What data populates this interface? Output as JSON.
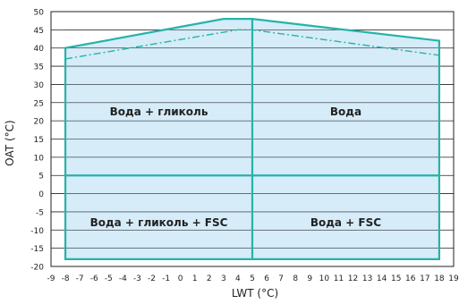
{
  "colors": {
    "envelope_fill": "#c8e6f5",
    "envelope_line": "#26b3a8",
    "grid": "#222222",
    "frame": "#222222"
  },
  "chart_data": {
    "type": "area",
    "xlabel": "LWT (°C)",
    "ylabel": "OAT (°C)",
    "xlim": [
      -9,
      19
    ],
    "ylim": [
      -20,
      50
    ],
    "x_ticks": [
      -9,
      -8,
      -7,
      -6,
      -5,
      -4,
      -3,
      -2,
      -1,
      0,
      1,
      2,
      3,
      4,
      5,
      6,
      7,
      8,
      9,
      10,
      11,
      12,
      13,
      14,
      15,
      16,
      17,
      18,
      19
    ],
    "y_ticks": [
      -20,
      -15,
      -10,
      -5,
      0,
      5,
      10,
      15,
      20,
      25,
      30,
      35,
      40,
      45,
      50
    ],
    "grid": "horizontal",
    "envelope": {
      "x": [
        -8,
        -8,
        3,
        5,
        18,
        18
      ],
      "y": [
        -18,
        40,
        48,
        48,
        42,
        -18
      ]
    },
    "dash_dot_limit": {
      "x": [
        -8,
        4,
        5,
        18
      ],
      "y": [
        37,
        45,
        45,
        38
      ]
    },
    "dividers": {
      "vertical_x": 5,
      "horizontal_y": 5
    },
    "regions": [
      {
        "label": "Вода + гликоль",
        "x": -1.5,
        "y": 22.5
      },
      {
        "label": "Вода",
        "x": 11.5,
        "y": 22.5
      },
      {
        "label": "Вода + гликоль + FSC",
        "x": -1.5,
        "y": -8
      },
      {
        "label": "Вода + FSC",
        "x": 11.5,
        "y": -8
      }
    ]
  }
}
